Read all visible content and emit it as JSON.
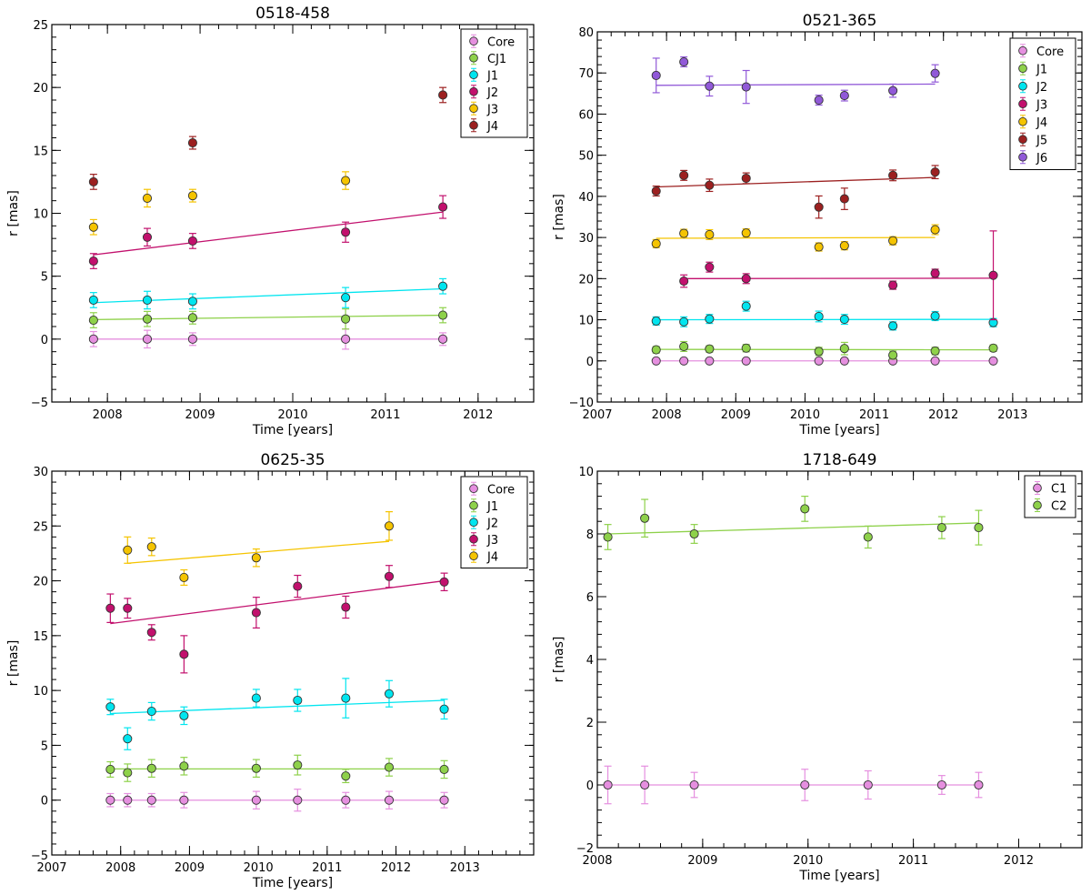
{
  "chart_data": [
    {
      "type": "scatter",
      "title": "0518-458",
      "xlabel": "Time [years]",
      "ylabel": "r [mas]",
      "xlim": [
        2007.4,
        2012.6
      ],
      "ylim": [
        -5,
        25
      ],
      "xticks": [
        2008,
        2009,
        2010,
        2011,
        2012
      ],
      "yticks": [
        -5,
        0,
        5,
        10,
        15,
        20,
        25
      ],
      "xticklabels": [
        "2008",
        "2009",
        "2010",
        "2011",
        "2012"
      ],
      "yticklabels": [
        "−5",
        "0",
        "5",
        "10",
        "15",
        "20",
        "25"
      ],
      "legend": "top-right",
      "series": [
        {
          "name": "Core",
          "color": "#e58fdf",
          "x": [
            2007.85,
            2008.43,
            2008.92,
            2010.57,
            2011.62
          ],
          "y": [
            0,
            0,
            0,
            0,
            0
          ],
          "err": [
            0.6,
            0.7,
            0.5,
            0.8,
            0.5
          ],
          "fit": [
            [
              2007.85,
              0
            ],
            [
              2011.62,
              0
            ]
          ]
        },
        {
          "name": "CJ1",
          "color": "#8ed14a",
          "x": [
            2007.85,
            2008.43,
            2008.92,
            2010.57,
            2011.62
          ],
          "y": [
            1.5,
            1.6,
            1.7,
            1.6,
            1.9
          ],
          "err": [
            0.6,
            0.6,
            0.5,
            0.8,
            0.6
          ],
          "fit": [
            [
              2007.85,
              1.55
            ],
            [
              2011.62,
              1.9
            ]
          ]
        },
        {
          "name": "J1",
          "color": "#00e5ef",
          "x": [
            2007.85,
            2008.43,
            2008.92,
            2010.57,
            2011.62
          ],
          "y": [
            3.1,
            3.1,
            3.0,
            3.3,
            4.2
          ],
          "err": [
            0.6,
            0.7,
            0.6,
            0.8,
            0.6
          ],
          "fit": [
            [
              2007.85,
              2.9
            ],
            [
              2011.62,
              4.0
            ]
          ]
        },
        {
          "name": "J2",
          "color": "#c2106d",
          "x": [
            2007.85,
            2008.43,
            2008.92,
            2010.57,
            2011.62
          ],
          "y": [
            6.2,
            8.1,
            7.8,
            8.5,
            10.5
          ],
          "err": [
            0.6,
            0.7,
            0.6,
            0.8,
            0.9
          ],
          "fit": [
            [
              2007.85,
              6.7
            ],
            [
              2011.62,
              10.1
            ]
          ]
        },
        {
          "name": "J3",
          "color": "#f5c400",
          "x": [
            2007.85,
            2008.43,
            2008.92,
            2010.57
          ],
          "y": [
            8.9,
            11.2,
            11.4,
            12.6
          ],
          "err": [
            0.6,
            0.7,
            0.5,
            0.7
          ],
          "fit": []
        },
        {
          "name": "J4",
          "color": "#9c2020",
          "x": [
            2007.85,
            2008.92,
            2011.62
          ],
          "y": [
            12.5,
            15.6,
            19.4
          ],
          "err": [
            0.6,
            0.5,
            0.6
          ],
          "fit": []
        }
      ]
    },
    {
      "type": "scatter",
      "title": "0521-365",
      "xlabel": "Time [years]",
      "ylabel": "r [mas]",
      "xlim": [
        2007,
        2014
      ],
      "ylim": [
        -10,
        80
      ],
      "xticks": [
        2007,
        2008,
        2009,
        2010,
        2011,
        2012,
        2013
      ],
      "yticks": [
        -10,
        0,
        10,
        20,
        30,
        40,
        50,
        60,
        70,
        80
      ],
      "xticklabels": [
        "2007",
        "2008",
        "2009",
        "2010",
        "2011",
        "2012",
        "2013"
      ],
      "yticklabels": [
        "−10",
        "0",
        "10",
        "20",
        "30",
        "40",
        "50",
        "60",
        "70",
        "80"
      ],
      "legend": "top-right",
      "series": [
        {
          "name": "Core",
          "color": "#e58fdf",
          "x": [
            2007.85,
            2008.25,
            2008.62,
            2009.15,
            2010.2,
            2010.57,
            2011.27,
            2011.88,
            2012.72
          ],
          "y": [
            0,
            0,
            0,
            0,
            0,
            0,
            0,
            0,
            0
          ],
          "err": [
            0.3,
            0.3,
            0.3,
            0.3,
            0.3,
            0.3,
            0.3,
            0.3,
            0.3
          ],
          "fit": [
            [
              2007.85,
              0
            ],
            [
              2012.72,
              0
            ]
          ]
        },
        {
          "name": "J1",
          "color": "#8ed14a",
          "x": [
            2007.85,
            2008.25,
            2008.62,
            2009.15,
            2010.2,
            2010.57,
            2011.27,
            2011.88,
            2012.72
          ],
          "y": [
            2.7,
            3.5,
            2.9,
            3.1,
            2.3,
            3.0,
            1.4,
            2.4,
            3.1
          ],
          "err": [
            0.8,
            1.2,
            0.8,
            0.9,
            1.0,
            1.5,
            1.0,
            0.9,
            0.8
          ],
          "fit": [
            [
              2007.85,
              2.8
            ],
            [
              2012.72,
              2.7
            ]
          ]
        },
        {
          "name": "J2",
          "color": "#00e5ef",
          "x": [
            2007.85,
            2008.25,
            2008.62,
            2009.15,
            2010.2,
            2010.57,
            2011.27,
            2011.88,
            2012.72
          ],
          "y": [
            9.7,
            9.5,
            10.2,
            13.3,
            10.8,
            10.1,
            8.5,
            10.9,
            9.3
          ],
          "err": [
            1.0,
            1.2,
            1.1,
            1.2,
            1.3,
            1.2,
            1.0,
            1.1,
            1.0
          ],
          "fit": [
            [
              2007.85,
              10.0
            ],
            [
              2012.72,
              10.1
            ]
          ]
        },
        {
          "name": "J3",
          "color": "#c2106d",
          "x": [
            2008.25,
            2008.62,
            2009.15,
            2011.27,
            2011.88,
            2012.72
          ],
          "y": [
            19.4,
            22.8,
            20.0,
            18.4,
            21.3,
            20.8
          ],
          "err": [
            1.5,
            1.2,
            1.2,
            1.0,
            1.0,
            10.8
          ],
          "fit": [
            [
              2008.25,
              20.0
            ],
            [
              2012.72,
              20.1
            ]
          ]
        },
        {
          "name": "J4",
          "color": "#f5c400",
          "x": [
            2007.85,
            2008.25,
            2008.62,
            2009.15,
            2010.2,
            2010.57,
            2011.27,
            2011.88
          ],
          "y": [
            28.5,
            31.0,
            30.7,
            31.1,
            27.7,
            28.0,
            29.2,
            31.9
          ],
          "err": [
            1.0,
            1.0,
            1.2,
            1.0,
            1.0,
            1.0,
            1.0,
            1.2
          ],
          "fit": [
            [
              2007.85,
              29.8
            ],
            [
              2011.88,
              30.0
            ]
          ]
        },
        {
          "name": "J5",
          "color": "#9c2020",
          "x": [
            2007.85,
            2008.25,
            2008.62,
            2009.15,
            2010.2,
            2010.57,
            2011.27,
            2011.88
          ],
          "y": [
            41.3,
            45.1,
            42.7,
            44.4,
            37.4,
            39.4,
            45.1,
            45.9
          ],
          "err": [
            1.2,
            1.2,
            1.5,
            1.3,
            2.7,
            2.6,
            1.3,
            1.6
          ],
          "fit": [
            [
              2007.85,
              42.3
            ],
            [
              2011.88,
              44.6
            ]
          ]
        },
        {
          "name": "J6",
          "color": "#9159d8",
          "x": [
            2007.85,
            2008.25,
            2008.62,
            2009.15,
            2010.2,
            2010.57,
            2011.27,
            2011.88
          ],
          "y": [
            69.4,
            72.7,
            66.8,
            66.6,
            63.4,
            64.5,
            65.7,
            69.9
          ],
          "err": [
            4.2,
            1.2,
            2.4,
            4.0,
            1.2,
            1.3,
            1.6,
            2.1
          ],
          "fit": [
            [
              2007.85,
              67.0
            ],
            [
              2011.88,
              67.3
            ]
          ]
        }
      ]
    },
    {
      "type": "scatter",
      "title": "0625-35",
      "xlabel": "Time [years]",
      "ylabel": "r [mas]",
      "xlim": [
        2007,
        2014
      ],
      "ylim": [
        -5,
        30
      ],
      "xticks": [
        2007,
        2008,
        2009,
        2010,
        2011,
        2012,
        2013
      ],
      "yticks": [
        -5,
        0,
        5,
        10,
        15,
        20,
        25,
        30
      ],
      "xticklabels": [
        "2007",
        "2008",
        "2009",
        "2010",
        "2011",
        "2012",
        "2013"
      ],
      "yticklabels": [
        "−5",
        "0",
        "5",
        "10",
        "15",
        "20",
        "25",
        "30"
      ],
      "legend": "top-right",
      "series": [
        {
          "name": "Core",
          "color": "#e58fdf",
          "x": [
            2007.85,
            2008.1,
            2008.45,
            2008.92,
            2009.97,
            2010.57,
            2011.27,
            2011.9,
            2012.7
          ],
          "y": [
            0,
            0,
            0,
            0,
            0,
            0,
            0,
            0,
            0
          ],
          "err": [
            0.6,
            0.6,
            0.6,
            0.7,
            0.8,
            1.0,
            0.7,
            0.8,
            0.7
          ],
          "fit": [
            [
              2007.85,
              0
            ],
            [
              2012.7,
              0
            ]
          ]
        },
        {
          "name": "J1",
          "color": "#8ed14a",
          "x": [
            2007.85,
            2008.1,
            2008.45,
            2008.92,
            2009.97,
            2010.57,
            2011.27,
            2011.9,
            2012.7
          ],
          "y": [
            2.8,
            2.5,
            2.9,
            3.1,
            2.9,
            3.2,
            2.2,
            3.0,
            2.8
          ],
          "err": [
            0.7,
            0.8,
            0.8,
            0.8,
            0.8,
            0.9,
            0.6,
            0.8,
            0.8
          ],
          "fit": [
            [
              2007.85,
              2.85
            ],
            [
              2012.7,
              2.85
            ]
          ]
        },
        {
          "name": "J2",
          "color": "#00e5ef",
          "x": [
            2007.85,
            2008.1,
            2008.45,
            2008.92,
            2009.97,
            2010.57,
            2011.27,
            2011.9,
            2012.7
          ],
          "y": [
            8.5,
            5.6,
            8.1,
            7.7,
            9.3,
            9.1,
            9.3,
            9.7,
            8.3
          ],
          "err": [
            0.7,
            1.0,
            0.8,
            0.8,
            0.8,
            1.0,
            1.8,
            1.2,
            0.9
          ],
          "fit": [
            [
              2007.85,
              7.9
            ],
            [
              2012.7,
              9.1
            ]
          ]
        },
        {
          "name": "J3",
          "color": "#c2106d",
          "x": [
            2007.85,
            2008.1,
            2008.45,
            2008.92,
            2009.97,
            2010.57,
            2011.27,
            2011.9,
            2012.7
          ],
          "y": [
            17.5,
            17.5,
            15.3,
            13.3,
            17.1,
            19.5,
            17.6,
            20.4,
            19.9
          ],
          "err": [
            1.3,
            0.9,
            0.7,
            1.7,
            1.4,
            1.0,
            1.0,
            1.0,
            0.8
          ],
          "fit": [
            [
              2007.85,
              16.1
            ],
            [
              2012.7,
              20.0
            ]
          ]
        },
        {
          "name": "J4",
          "color": "#f5c400",
          "x": [
            2008.1,
            2008.45,
            2008.92,
            2009.97,
            2011.9
          ],
          "y": [
            22.8,
            23.1,
            20.3,
            22.1,
            25.0
          ],
          "err": [
            1.2,
            0.8,
            0.7,
            0.8,
            1.3
          ],
          "fit": [
            [
              2008.1,
              21.6
            ],
            [
              2011.9,
              23.6
            ]
          ]
        }
      ]
    },
    {
      "type": "scatter",
      "title": "1718-649",
      "xlabel": "Time [years]",
      "ylabel": "r [mas]",
      "xlim": [
        2008,
        2012.6
      ],
      "ylim": [
        -2,
        10
      ],
      "xticks": [
        2008,
        2009,
        2010,
        2011,
        2012
      ],
      "yticks": [
        -2,
        0,
        2,
        4,
        6,
        8,
        10
      ],
      "xticklabels": [
        "2008",
        "2009",
        "2010",
        "2011",
        "2012"
      ],
      "yticklabels": [
        "−2",
        "0",
        "2",
        "4",
        "6",
        "8",
        "10"
      ],
      "legend": "top-right",
      "series": [
        {
          "name": "C1",
          "color": "#e58fdf",
          "x": [
            2008.1,
            2008.45,
            2008.92,
            2009.97,
            2010.57,
            2011.27,
            2011.62
          ],
          "y": [
            0,
            0,
            0,
            0,
            0,
            0,
            0
          ],
          "err": [
            0.6,
            0.6,
            0.4,
            0.5,
            0.45,
            0.3,
            0.4
          ],
          "fit": [
            [
              2008.1,
              0
            ],
            [
              2011.62,
              0
            ]
          ]
        },
        {
          "name": "C2",
          "color": "#8ed14a",
          "x": [
            2008.1,
            2008.45,
            2008.92,
            2009.97,
            2010.57,
            2011.27,
            2011.62
          ],
          "y": [
            7.9,
            8.5,
            8.0,
            8.8,
            7.9,
            8.2,
            8.2
          ],
          "err": [
            0.4,
            0.6,
            0.3,
            0.4,
            0.35,
            0.35,
            0.55
          ],
          "fit": [
            [
              2008.1,
              8.0
            ],
            [
              2011.62,
              8.35
            ]
          ]
        }
      ]
    }
  ]
}
